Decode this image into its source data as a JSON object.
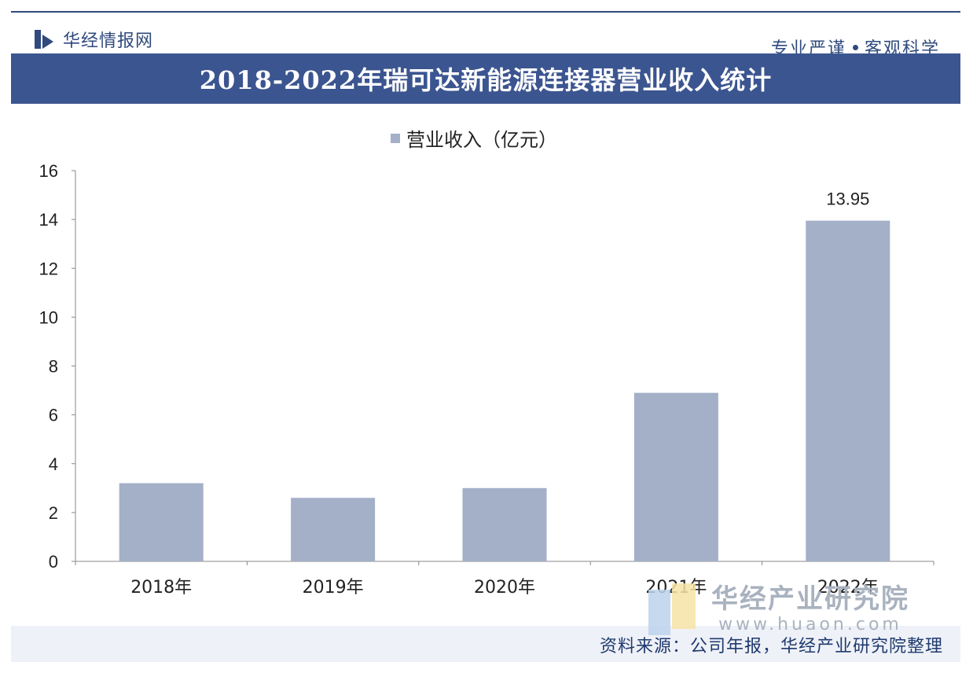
{
  "header": {
    "brand": "华经情报网",
    "slogan_left": "专业严谨",
    "slogan_right": "客观科学"
  },
  "colors": {
    "brand_blue": "#2f4a7c",
    "title_bar": "#3b5590",
    "bar_fill": "#a3b0c8",
    "footer_bg": "#eef1f7"
  },
  "watermark": {
    "brand_cn": "华经产业研究院",
    "brand_en": "www.huaon.com"
  },
  "footer": {
    "source": "资料来源：公司年报，华经产业研究院整理"
  },
  "chart_data": {
    "type": "bar",
    "title": "2018-2022年瑞可达新能源连接器营业收入统计",
    "categories": [
      "2018年",
      "2019年",
      "2020年",
      "2021年",
      "2022年"
    ],
    "series": [
      {
        "name": "营业收入（亿元）",
        "values": [
          3.2,
          2.6,
          3.0,
          6.9,
          13.95
        ]
      }
    ],
    "data_labels": [
      null,
      null,
      null,
      null,
      "13.95"
    ],
    "ylim": [
      0,
      16
    ],
    "yticks": [
      "0",
      "2",
      "4",
      "6",
      "8",
      "10",
      "12",
      "14",
      "16"
    ],
    "legend_position": "top-center",
    "grid": false
  }
}
